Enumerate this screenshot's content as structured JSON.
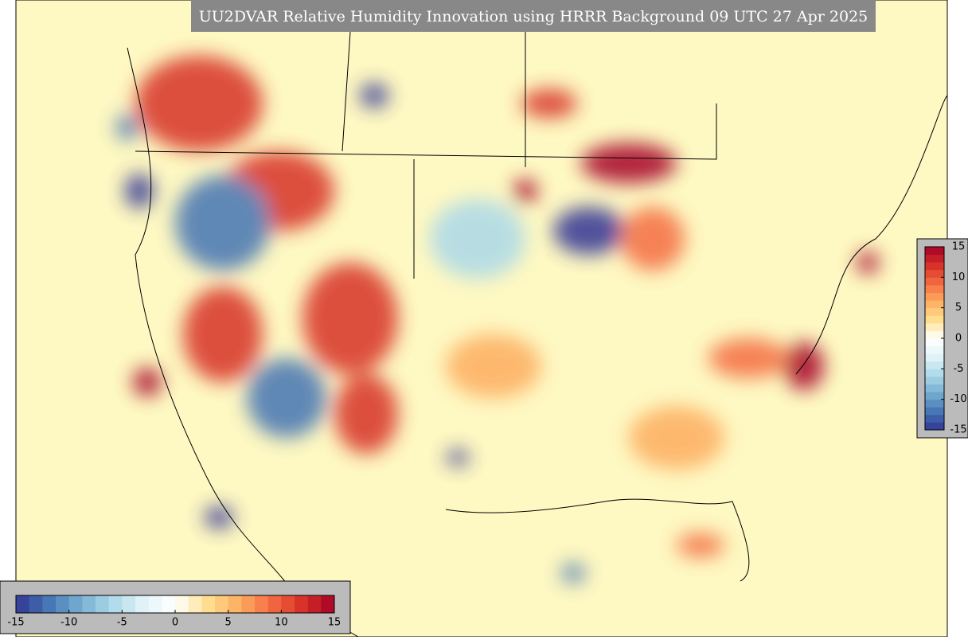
{
  "title": "UU2DVAR Relative Humidity Innovation using HRRR Background 09 UTC 27 Apr 2025",
  "colorbar_bottom": {
    "ticks": [
      -15,
      -10,
      -5,
      0,
      5,
      10,
      15
    ]
  },
  "colorbar_right": {
    "ticks": [
      15,
      10,
      5,
      0,
      -5,
      -10,
      -15
    ]
  },
  "colormap": [
    "#313695",
    "#4575b4",
    "#74add1",
    "#abd9e9",
    "#e0f3f8",
    "#ffffff",
    "#fee090",
    "#fdae61",
    "#f46d43",
    "#d73027",
    "#a50026"
  ]
}
